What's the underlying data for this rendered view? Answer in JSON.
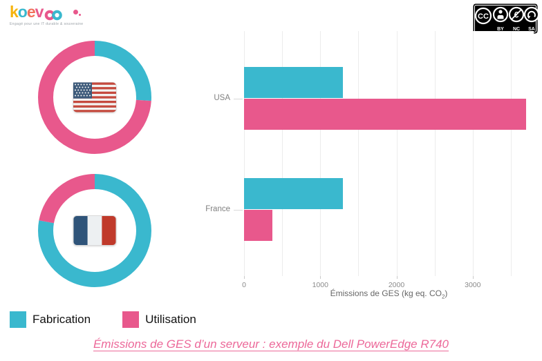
{
  "logo": {
    "letters": [
      {
        "ch": "k",
        "color": "#f6b40e"
      },
      {
        "ch": "o",
        "color": "#3ab8ce"
      },
      {
        "ch": "e",
        "color": "#f2705b"
      },
      {
        "ch": "v",
        "color": "#e8588c"
      }
    ],
    "infinity_left_color": "#e8588c",
    "infinity_right_color": "#3ab8ce",
    "dot_color": "#e8588c",
    "tagline": "Engagé pour une IT durable & souveraine"
  },
  "license": {
    "name": "Creative Commons BY-NC-SA",
    "labels": [
      "BY",
      "NC",
      "SA"
    ]
  },
  "donuts": [
    {
      "country": "USA",
      "fabrication": 1300,
      "utilisation": 3700
    },
    {
      "country": "France",
      "fabrication": 1300,
      "utilisation": 370
    }
  ],
  "chart_data": {
    "type": "bar",
    "orientation": "horizontal",
    "categories": [
      "USA",
      "France"
    ],
    "series": [
      {
        "name": "Fabrication",
        "color": "#3ab8ce",
        "values": [
          1300,
          1300
        ]
      },
      {
        "name": "Utilisation",
        "color": "#e8588c",
        "values": [
          3700,
          370
        ]
      }
    ],
    "title": "",
    "xlabel": "Émissions de GES (kg eq. CO₂)",
    "xlabel_parts": {
      "pre": "Émissions de GES (kg eq. CO",
      "sub": "2",
      "post": ")"
    },
    "ylabel": "",
    "xlim": [
      0,
      3800
    ],
    "xticks": [
      0,
      1000,
      2000,
      3000
    ],
    "minor_step": 500,
    "grid": true,
    "legend_position": "bottom-left"
  },
  "legend": [
    {
      "label": "Fabrication",
      "color": "#3ab8ce"
    },
    {
      "label": "Utilisation",
      "color": "#e8588c"
    }
  ],
  "title": "Émissions de GES d’un serveur : exemple du Dell PowerEdge R740",
  "colors": {
    "cyan": "#3ab8ce",
    "pink": "#e8588c",
    "title_pink": "#ec6899",
    "grid": "#ececec",
    "axis_text": "#8a8a8a"
  }
}
